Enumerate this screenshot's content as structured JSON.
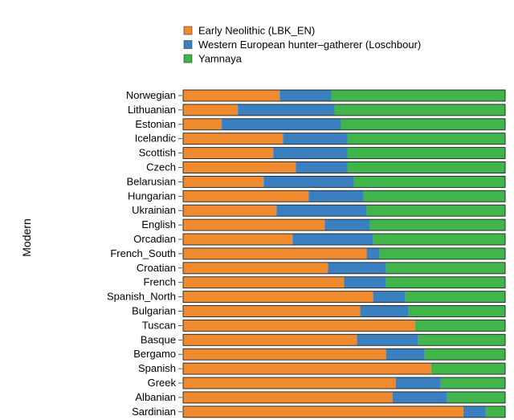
{
  "chart_data": {
    "type": "bar",
    "orientation": "horizontal",
    "stacked": true,
    "normalized": true,
    "title": "",
    "xlabel": "",
    "ylabel": "Modern",
    "xlim": [
      0,
      1
    ],
    "grid": false,
    "legend_position": "top",
    "categories": [
      "Norwegian",
      "Lithuanian",
      "Estonian",
      "Icelandic",
      "Scottish",
      "Czech",
      "Belarusian",
      "Hungarian",
      "Ukrainian",
      "English",
      "Orcadian",
      "French_South",
      "Croatian",
      "French",
      "Spanish_North",
      "Bulgarian",
      "Tuscan",
      "Basque",
      "Bergamo",
      "Spanish",
      "Greek",
      "Albanian",
      "Sardinian"
    ],
    "series": [
      {
        "name": "Early Neolithic (LBK_EN)",
        "color": "#f08a2e",
        "values": [
          0.3,
          0.17,
          0.12,
          0.31,
          0.28,
          0.35,
          0.25,
          0.39,
          0.29,
          0.44,
          0.34,
          0.57,
          0.45,
          0.5,
          0.59,
          0.55,
          0.72,
          0.54,
          0.63,
          0.77,
          0.66,
          0.65,
          0.87
        ]
      },
      {
        "name": "Western European hunter–gatherer (Loschbour)",
        "color": "#3a7fc0",
        "values": [
          0.16,
          0.3,
          0.37,
          0.2,
          0.23,
          0.16,
          0.28,
          0.17,
          0.28,
          0.14,
          0.25,
          0.04,
          0.18,
          0.13,
          0.1,
          0.15,
          0.0,
          0.19,
          0.12,
          0.0,
          0.14,
          0.17,
          0.07
        ]
      },
      {
        "name": "Yamnaya",
        "color": "#3fb54a",
        "values": [
          0.54,
          0.53,
          0.51,
          0.49,
          0.49,
          0.49,
          0.47,
          0.44,
          0.43,
          0.42,
          0.41,
          0.39,
          0.37,
          0.37,
          0.31,
          0.3,
          0.28,
          0.27,
          0.25,
          0.23,
          0.2,
          0.18,
          0.06
        ]
      }
    ]
  }
}
